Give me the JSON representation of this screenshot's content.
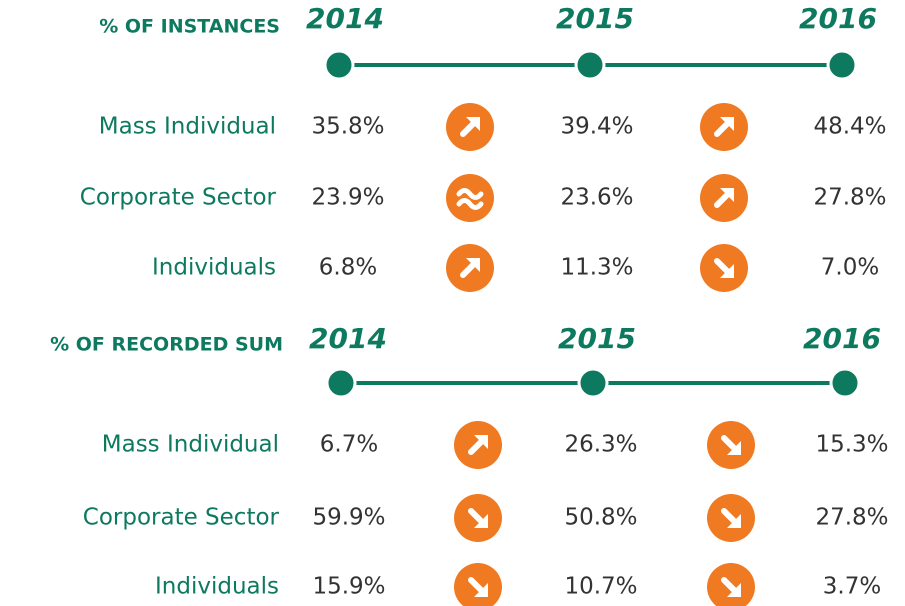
{
  "sections": [
    {
      "title": "% OF INSTANCES",
      "years": [
        "2014",
        "2015",
        "2016"
      ],
      "rows": [
        {
          "label": "Mass Individual",
          "values": [
            "35.8%",
            "39.4%",
            "48.4%"
          ]
        },
        {
          "label": "Corporate Sector",
          "values": [
            "23.9%",
            "23.6%",
            "27.8%"
          ]
        },
        {
          "label": "Individuals",
          "values": [
            "6.8%",
            "11.3%",
            "7.0%"
          ]
        }
      ]
    },
    {
      "title": "% OF RECORDED SUM",
      "years": [
        "2014",
        "2015",
        "2016"
      ],
      "rows": [
        {
          "label": "Mass Individual",
          "values": [
            "6.7%",
            "26.3%",
            "15.3%"
          ]
        },
        {
          "label": "Corporate Sector",
          "values": [
            "59.9%",
            "50.8%",
            "27.8%"
          ]
        },
        {
          "label": "Individuals",
          "values": [
            "15.9%",
            "10.7%",
            "3.7%"
          ]
        }
      ]
    }
  ]
}
